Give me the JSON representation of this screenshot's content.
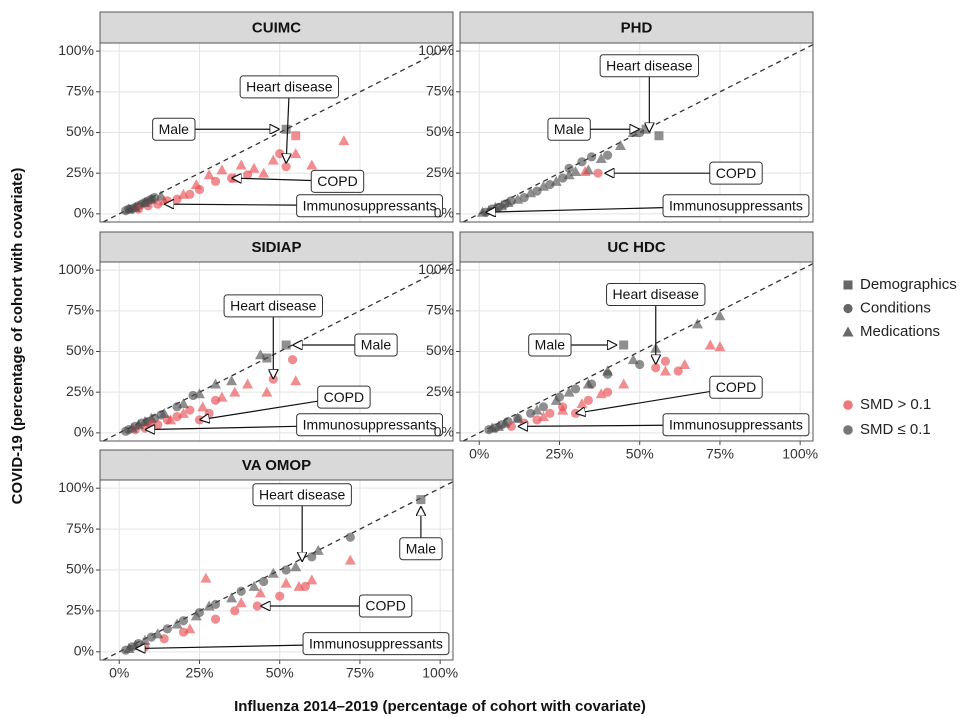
{
  "axes": {
    "xlabel": "Influenza 2014–2019 (percentage of cohort with covariate)",
    "ylabel": "COVID-19 (percentage of cohort with covariate)"
  },
  "legend": {
    "shapes": [
      {
        "name": "Demographics",
        "shape": "square"
      },
      {
        "name": "Conditions",
        "shape": "circle"
      },
      {
        "name": "Medications",
        "shape": "triangle"
      }
    ],
    "colors": [
      {
        "name": "SMD > 0.1",
        "color": "#e8474c"
      },
      {
        "name": "SMD ≤ 0.1",
        "color": "#4a4a4a"
      }
    ]
  },
  "chart_data": [
    {
      "type": "scatter",
      "title": "CUIMC",
      "xlim": [
        -6,
        104
      ],
      "ylim": [
        -5,
        105
      ],
      "xticks": [
        {
          "value": 0,
          "label": "0%"
        },
        {
          "value": 25,
          "label": "25%"
        },
        {
          "value": 50,
          "label": "50%"
        },
        {
          "value": 75,
          "label": "75%"
        },
        {
          "value": 100,
          "label": "100%"
        }
      ],
      "yticks": [
        {
          "value": 0,
          "label": "0%"
        },
        {
          "value": 25,
          "label": "25%"
        },
        {
          "value": 50,
          "label": "50%"
        },
        {
          "value": 75,
          "label": "75%"
        },
        {
          "value": 100,
          "label": "100%"
        }
      ],
      "series": [
        {
          "shape": "square",
          "color": "#4a4a4a",
          "x": [
            52
          ],
          "y": [
            52
          ]
        },
        {
          "shape": "square",
          "color": "#e8474c",
          "x": [
            55
          ],
          "y": [
            48
          ]
        },
        {
          "shape": "circle",
          "color": "#4a4a4a",
          "x": [
            2,
            3,
            4,
            5,
            6,
            7,
            8,
            9,
            10,
            11
          ],
          "y": [
            2,
            3,
            3,
            4,
            5,
            6,
            7,
            8,
            9,
            10
          ]
        },
        {
          "shape": "circle",
          "color": "#e8474c",
          "x": [
            6,
            9,
            12,
            15,
            18,
            22,
            25,
            30,
            35,
            40,
            52,
            50
          ],
          "y": [
            3,
            5,
            6,
            8,
            9,
            12,
            15,
            20,
            22,
            24,
            29,
            37
          ]
        },
        {
          "shape": "triangle",
          "color": "#4a4a4a",
          "x": [
            3,
            5,
            8,
            10,
            13
          ],
          "y": [
            3,
            4,
            7,
            9,
            11
          ]
        },
        {
          "shape": "triangle",
          "color": "#e8474c",
          "x": [
            14,
            20,
            24,
            28,
            32,
            36,
            38,
            42,
            45,
            48,
            55,
            60,
            70
          ],
          "y": [
            8,
            12,
            18,
            24,
            27,
            22,
            30,
            28,
            25,
            33,
            37,
            30,
            45
          ]
        }
      ],
      "annotations": [
        {
          "text": "Heart disease",
          "x": 52,
          "y": 31
        },
        {
          "text": "Male",
          "x": 50,
          "y": 52
        },
        {
          "text": "COPD",
          "x": 35,
          "y": 22
        },
        {
          "text": "Immunosuppressants",
          "x": 14,
          "y": 6
        }
      ]
    },
    {
      "type": "scatter",
      "title": "PHD",
      "xlim": [
        -6,
        104
      ],
      "ylim": [
        -5,
        105
      ],
      "xticks": [
        {
          "value": 0,
          "label": "0%"
        },
        {
          "value": 25,
          "label": "25%"
        },
        {
          "value": 50,
          "label": "50%"
        },
        {
          "value": 75,
          "label": "75%"
        },
        {
          "value": 100,
          "label": "100%"
        }
      ],
      "yticks": [
        {
          "value": 0,
          "label": "0%"
        },
        {
          "value": 25,
          "label": "25%"
        },
        {
          "value": 50,
          "label": "50%"
        },
        {
          "value": 75,
          "label": "75%"
        },
        {
          "value": 100,
          "label": "100%"
        }
      ],
      "series": [
        {
          "shape": "square",
          "color": "#4a4a4a",
          "x": [
            52,
            56
          ],
          "y": [
            52,
            48
          ]
        },
        {
          "shape": "circle",
          "color": "#4a4a4a",
          "x": [
            2,
            4,
            6,
            8,
            10,
            14,
            18,
            22,
            26,
            28,
            32,
            35,
            40,
            50
          ],
          "y": [
            1,
            3,
            4,
            6,
            8,
            10,
            14,
            18,
            22,
            28,
            32,
            35,
            36,
            50
          ]
        },
        {
          "shape": "circle",
          "color": "#e8474c",
          "x": [
            37
          ],
          "y": [
            25
          ]
        },
        {
          "shape": "triangle",
          "color": "#4a4a4a",
          "x": [
            1,
            3,
            5,
            7,
            9,
            12,
            16,
            20,
            24,
            28,
            30,
            34,
            38,
            44,
            48
          ],
          "y": [
            1,
            2,
            4,
            5,
            7,
            9,
            13,
            17,
            20,
            24,
            26,
            27,
            34,
            42,
            50
          ]
        },
        {
          "shape": "triangle",
          "color": "#e8474c",
          "x": [
            33
          ],
          "y": [
            26
          ]
        }
      ],
      "annotations": [
        {
          "text": "Heart disease",
          "x": 53,
          "y": 50
        },
        {
          "text": "Male",
          "x": 50,
          "y": 52
        },
        {
          "text": "COPD",
          "x": 39,
          "y": 25
        },
        {
          "text": "Immunosuppressants",
          "x": 2,
          "y": 1
        }
      ]
    },
    {
      "type": "scatter",
      "title": "SIDIAP",
      "xlim": [
        -6,
        104
      ],
      "ylim": [
        -5,
        105
      ],
      "xticks": [
        {
          "value": 0,
          "label": "0%"
        },
        {
          "value": 25,
          "label": "25%"
        },
        {
          "value": 50,
          "label": "50%"
        },
        {
          "value": 75,
          "label": "75%"
        },
        {
          "value": 100,
          "label": "100%"
        }
      ],
      "yticks": [
        {
          "value": 0,
          "label": "0%"
        },
        {
          "value": 25,
          "label": "25%"
        },
        {
          "value": 50,
          "label": "50%"
        },
        {
          "value": 75,
          "label": "75%"
        },
        {
          "value": 100,
          "label": "100%"
        }
      ],
      "series": [
        {
          "shape": "square",
          "color": "#4a4a4a",
          "x": [
            46,
            52
          ],
          "y": [
            46,
            54
          ]
        },
        {
          "shape": "circle",
          "color": "#4a4a4a",
          "x": [
            2,
            3,
            5,
            7,
            9,
            11,
            13,
            18,
            23
          ],
          "y": [
            1,
            2,
            4,
            6,
            7,
            9,
            11,
            16,
            23
          ]
        },
        {
          "shape": "circle",
          "color": "#e8474c",
          "x": [
            5,
            8,
            12,
            15,
            18,
            22,
            25,
            28,
            30,
            48,
            54
          ],
          "y": [
            2,
            3,
            5,
            8,
            10,
            14,
            8,
            12,
            20,
            33,
            45
          ]
        },
        {
          "shape": "triangle",
          "color": "#4a4a4a",
          "x": [
            4,
            6,
            8,
            10,
            14,
            20,
            25,
            30,
            35,
            44
          ],
          "y": [
            3,
            5,
            7,
            9,
            12,
            18,
            24,
            30,
            32,
            48
          ]
        },
        {
          "shape": "triangle",
          "color": "#e8474c",
          "x": [
            10,
            16,
            20,
            26,
            32,
            36,
            40,
            46,
            55
          ],
          "y": [
            6,
            8,
            12,
            16,
            22,
            25,
            30,
            25,
            32
          ]
        }
      ],
      "annotations": [
        {
          "text": "Heart disease",
          "x": 48,
          "y": 33
        },
        {
          "text": "Male",
          "x": 54,
          "y": 54
        },
        {
          "text": "COPD",
          "x": 25,
          "y": 8
        },
        {
          "text": "Immunosuppressants",
          "x": 8,
          "y": 2
        }
      ]
    },
    {
      "type": "scatter",
      "title": "UC HDC",
      "xlim": [
        -6,
        104
      ],
      "ylim": [
        -5,
        105
      ],
      "xticks": [
        {
          "value": 0,
          "label": "0%"
        },
        {
          "value": 25,
          "label": "25%"
        },
        {
          "value": 50,
          "label": "50%"
        },
        {
          "value": 75,
          "label": "75%"
        },
        {
          "value": 100,
          "label": "100%"
        }
      ],
      "yticks": [
        {
          "value": 0,
          "label": "0%"
        },
        {
          "value": 25,
          "label": "25%"
        },
        {
          "value": 50,
          "label": "50%"
        },
        {
          "value": 75,
          "label": "75%"
        },
        {
          "value": 100,
          "label": "100%"
        }
      ],
      "series": [
        {
          "shape": "square",
          "color": "#4a4a4a",
          "x": [
            45
          ],
          "y": [
            54
          ]
        },
        {
          "shape": "circle",
          "color": "#4a4a4a",
          "x": [
            3,
            5,
            7,
            9,
            12,
            16,
            20,
            25,
            30,
            35,
            40,
            50
          ],
          "y": [
            2,
            3,
            5,
            7,
            9,
            12,
            16,
            22,
            27,
            30,
            36,
            42
          ]
        },
        {
          "shape": "circle",
          "color": "#e8474c",
          "x": [
            10,
            14,
            18,
            22,
            26,
            30,
            34,
            40,
            55,
            58,
            62
          ],
          "y": [
            4,
            6,
            8,
            12,
            16,
            12,
            20,
            25,
            40,
            44,
            38
          ]
        },
        {
          "shape": "triangle",
          "color": "#4a4a4a",
          "x": [
            4,
            6,
            8,
            12,
            18,
            24,
            28,
            34,
            40,
            48,
            55,
            68,
            75
          ],
          "y": [
            3,
            4,
            6,
            9,
            14,
            20,
            25,
            30,
            38,
            45,
            52,
            67,
            72
          ]
        },
        {
          "shape": "triangle",
          "color": "#e8474c",
          "x": [
            20,
            26,
            32,
            38,
            45,
            58,
            64,
            72,
            75
          ],
          "y": [
            10,
            14,
            18,
            24,
            30,
            38,
            42,
            54,
            53
          ]
        }
      ],
      "annotations": [
        {
          "text": "Heart disease",
          "x": 55,
          "y": 42
        },
        {
          "text": "Male",
          "x": 43,
          "y": 54
        },
        {
          "text": "COPD",
          "x": 30,
          "y": 12
        },
        {
          "text": "Immunosuppressants",
          "x": 12,
          "y": 4
        }
      ]
    },
    {
      "type": "scatter",
      "title": "VA OMOP",
      "xlim": [
        -6,
        104
      ],
      "ylim": [
        -5,
        105
      ],
      "xticks": [
        {
          "value": 0,
          "label": "0%"
        },
        {
          "value": 25,
          "label": "25%"
        },
        {
          "value": 50,
          "label": "50%"
        },
        {
          "value": 75,
          "label": "75%"
        },
        {
          "value": 100,
          "label": "100%"
        }
      ],
      "yticks": [
        {
          "value": 0,
          "label": "0%"
        },
        {
          "value": 25,
          "label": "25%"
        },
        {
          "value": 50,
          "label": "50%"
        },
        {
          "value": 75,
          "label": "75%"
        },
        {
          "value": 100,
          "label": "100%"
        }
      ],
      "series": [
        {
          "shape": "square",
          "color": "#4a4a4a",
          "x": [
            94
          ],
          "y": [
            93
          ]
        },
        {
          "shape": "circle",
          "color": "#4a4a4a",
          "x": [
            2,
            4,
            6,
            10,
            15,
            20,
            25,
            30,
            38,
            45,
            52,
            60,
            72
          ],
          "y": [
            1,
            3,
            5,
            9,
            14,
            19,
            24,
            29,
            37,
            43,
            50,
            58,
            70
          ]
        },
        {
          "shape": "circle",
          "color": "#e8474c",
          "x": [
            8,
            14,
            20,
            30,
            36,
            43,
            50,
            58
          ],
          "y": [
            3,
            8,
            12,
            20,
            25,
            28,
            34,
            40
          ]
        },
        {
          "shape": "triangle",
          "color": "#4a4a4a",
          "x": [
            3,
            5,
            8,
            12,
            18,
            24,
            28,
            35,
            42,
            48,
            55,
            62
          ],
          "y": [
            2,
            4,
            7,
            11,
            17,
            22,
            28,
            33,
            40,
            48,
            52,
            62
          ]
        },
        {
          "shape": "triangle",
          "color": "#e8474c",
          "x": [
            22,
            27,
            38,
            44,
            52,
            56,
            60,
            72
          ],
          "y": [
            14,
            45,
            30,
            36,
            42,
            40,
            44,
            56
          ]
        }
      ],
      "annotations": [
        {
          "text": "Heart disease",
          "x": 57,
          "y": 55
        },
        {
          "text": "Male",
          "x": 94,
          "y": 89
        },
        {
          "text": "COPD",
          "x": 44,
          "y": 28
        },
        {
          "text": "Immunosuppressants",
          "x": 5,
          "y": 2
        }
      ]
    }
  ]
}
